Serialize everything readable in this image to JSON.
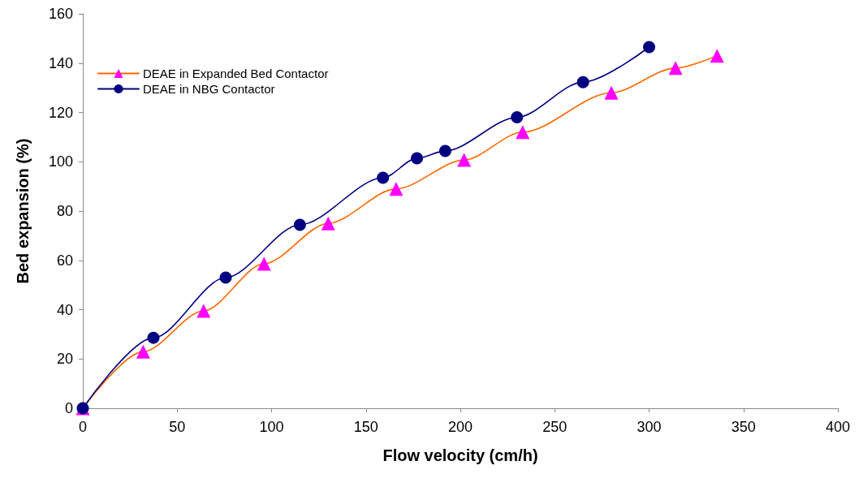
{
  "chart_data": {
    "type": "line",
    "xlabel": "Flow velocity (cm/h)",
    "ylabel": "Bed expansion (%)",
    "xlim": [
      0,
      400
    ],
    "xticks": [
      0,
      50,
      100,
      150,
      200,
      250,
      300,
      350,
      400
    ],
    "ylim": [
      0,
      160
    ],
    "yticks": [
      0,
      20,
      40,
      60,
      80,
      100,
      120,
      140,
      160
    ],
    "grid": false,
    "legend": "top left",
    "series": [
      {
        "name": "DEAE in Expanded Bed Contactor",
        "color": "#ff6600",
        "colors": [
          "#ff00ff",
          "#ff00ff",
          "#ff00ff",
          "#ff00ff",
          "#ff00ff",
          "#ff00ff",
          "#ff00ff",
          "#ff00ff",
          "#ff00ff",
          "#ff00ff",
          "#ff00ff"
        ],
        "marker": "triangle",
        "x": [
          0,
          32,
          64,
          96,
          130,
          166,
          202,
          233,
          280,
          314,
          336
        ],
        "values": [
          0,
          23,
          39.5,
          58.6,
          75,
          89,
          100.7,
          112,
          128,
          138,
          143
        ]
      },
      {
        "name": "DEAE in NBG Contactor",
        "color": "#000080",
        "colors": [
          "#000080",
          "#000080",
          "#000080",
          "#000080",
          "#000080",
          "#000080",
          "#000080",
          "#000080",
          "#000080",
          "#000080"
        ],
        "marker": "circle",
        "x": [
          0,
          37.4,
          75.7,
          115,
          159,
          177,
          192,
          230,
          265,
          300
        ],
        "values": [
          0,
          28.6,
          53,
          74.4,
          93.5,
          101.4,
          104.4,
          118,
          132.3,
          146.5
        ]
      }
    ]
  }
}
